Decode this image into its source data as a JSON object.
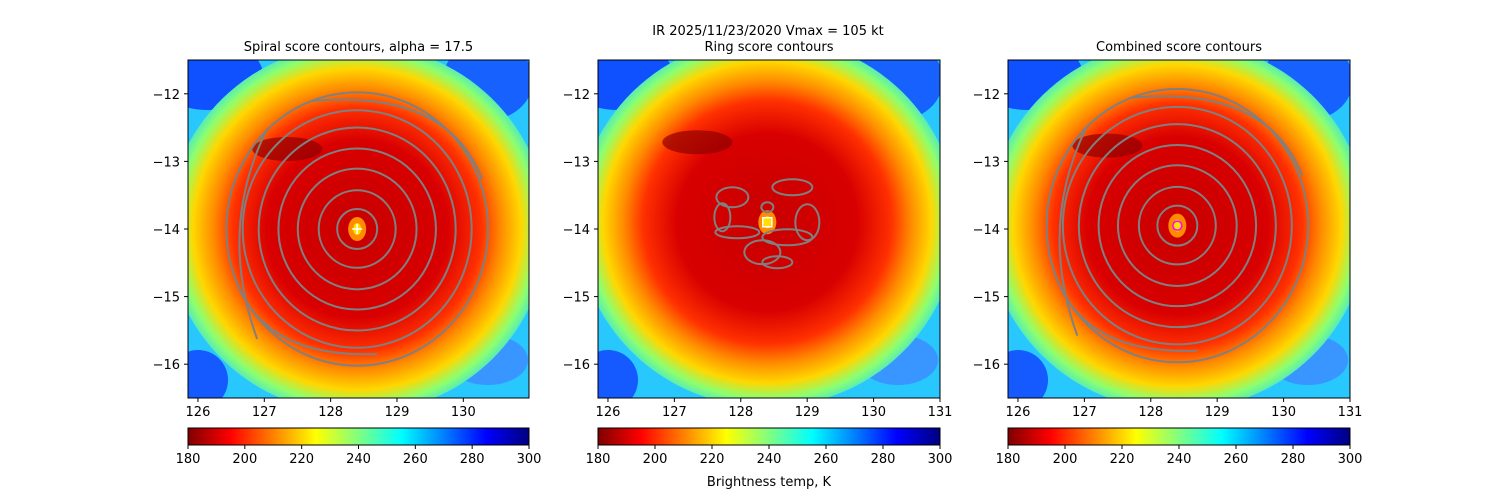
{
  "suptitle_line1": "IR  2025/11/23/2020    Vmax = 105 kt",
  "colorbar_label": "Brightness temp, K",
  "colormap_stops": [
    "#800000",
    "#ff0000",
    "#ff8000",
    "#ffff00",
    "#80ff80",
    "#00ffff",
    "#0080ff",
    "#0000ff",
    "#000080"
  ],
  "contour_color": "#808080",
  "chart_data": [
    {
      "type": "heatmap",
      "title": "Spiral score contours, alpha = 17.5",
      "xlim": [
        125.85,
        130.99
      ],
      "ylim": [
        -16.5,
        -11.5
      ],
      "xticks": [
        126,
        127,
        128,
        129,
        130
      ],
      "yticks": [
        -12,
        -13,
        -14,
        -15,
        -16
      ],
      "center": [
        128.4,
        -14.0
      ],
      "center_marker": "white-plus",
      "contours": "concentric",
      "colorbar": {
        "min": 180,
        "max": 300,
        "ticks": [
          180,
          200,
          220,
          240,
          260,
          280,
          300
        ]
      }
    },
    {
      "type": "heatmap",
      "title": "Ring score contours",
      "xlim": [
        125.85,
        131.0
      ],
      "ylim": [
        -16.5,
        -11.5
      ],
      "xticks": [
        126,
        127,
        128,
        129,
        130,
        131
      ],
      "yticks": [
        -12,
        -13,
        -14,
        -15,
        -16
      ],
      "center": [
        128.4,
        -13.9
      ],
      "center_marker": "white-square",
      "contours": "ring-fragments",
      "colorbar": {
        "min": 180,
        "max": 300,
        "ticks": [
          180,
          200,
          220,
          240,
          260,
          280,
          300
        ]
      }
    },
    {
      "type": "heatmap",
      "title": "Combined score contours",
      "xlim": [
        125.85,
        131.0
      ],
      "ylim": [
        -16.5,
        -11.5
      ],
      "xticks": [
        126,
        127,
        128,
        129,
        130,
        131
      ],
      "yticks": [
        -12,
        -13,
        -14,
        -15,
        -16
      ],
      "center": [
        128.4,
        -13.95
      ],
      "center_marker": "magenta-circle",
      "contours": "concentric",
      "colorbar": {
        "min": 180,
        "max": 300,
        "ticks": [
          180,
          200,
          220,
          240,
          260,
          280,
          300
        ]
      }
    }
  ]
}
